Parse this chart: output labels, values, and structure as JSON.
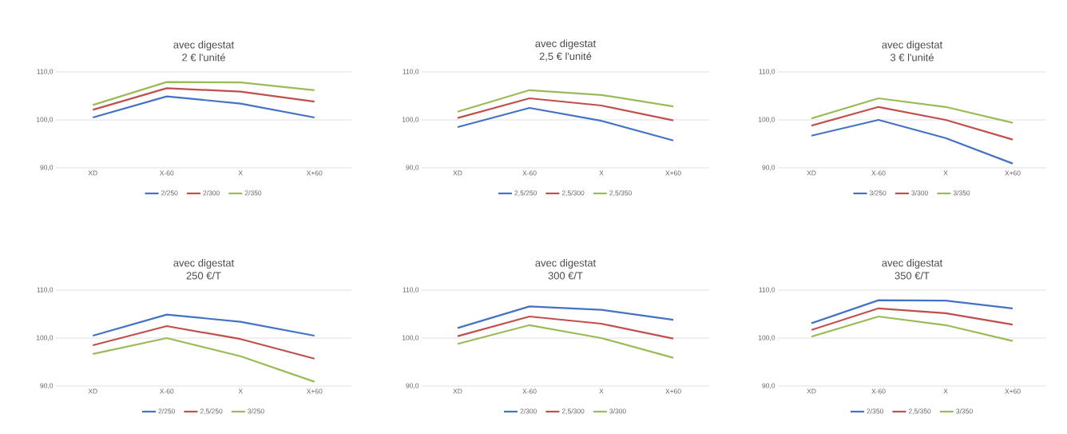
{
  "chart_data": [
    {
      "type": "line",
      "title": "avec digestat",
      "subtitle": "2 € l'unité",
      "categories": [
        "XD",
        "X-60",
        "X",
        "X+60"
      ],
      "ylim": [
        90,
        110
      ],
      "yticks": [
        {
          "value": 90,
          "label": "90,0"
        },
        {
          "value": 100,
          "label": "100,0"
        },
        {
          "value": 110,
          "label": "110,0"
        }
      ],
      "grid": "y",
      "legend": "bottom",
      "series": [
        {
          "name": "2/250",
          "color": "#4472c4",
          "values": [
            100.5,
            104.9,
            103.4,
            100.5
          ]
        },
        {
          "name": "2/300",
          "color": "#c0504d",
          "values": [
            102.1,
            106.6,
            105.9,
            103.8
          ]
        },
        {
          "name": "2/350",
          "color": "#9bbb59",
          "values": [
            103.1,
            107.9,
            107.8,
            106.2
          ]
        }
      ]
    },
    {
      "type": "line",
      "title": "avec digestat",
      "subtitle": "2,5 € l'unité",
      "categories": [
        "XD",
        "X-60",
        "X",
        "X+60"
      ],
      "ylim": [
        90,
        110
      ],
      "yticks": [
        {
          "value": 90,
          "label": "90,0"
        },
        {
          "value": 100,
          "label": "100,0"
        },
        {
          "value": 110,
          "label": "110,0"
        }
      ],
      "grid": "y",
      "legend": "bottom",
      "series": [
        {
          "name": "2,5/250",
          "color": "#4472c4",
          "values": [
            98.5,
            102.5,
            99.8,
            95.7
          ]
        },
        {
          "name": "2,5/300",
          "color": "#c0504d",
          "values": [
            100.4,
            104.5,
            103.0,
            99.9
          ]
        },
        {
          "name": "2,5/350",
          "color": "#9bbb59",
          "values": [
            101.7,
            106.2,
            105.2,
            102.8
          ]
        }
      ]
    },
    {
      "type": "line",
      "title": "avec digestat",
      "subtitle": "3 € l'unité",
      "categories": [
        "XD",
        "X-60",
        "X",
        "X+60"
      ],
      "ylim": [
        90,
        110
      ],
      "yticks": [
        {
          "value": 90,
          "label": "90,0"
        },
        {
          "value": 100,
          "label": "100,0"
        },
        {
          "value": 110,
          "label": "110,0"
        }
      ],
      "grid": "y",
      "legend": "bottom",
      "series": [
        {
          "name": "3/250",
          "color": "#4472c4",
          "values": [
            96.7,
            100.0,
            96.2,
            90.9
          ]
        },
        {
          "name": "3/300",
          "color": "#c0504d",
          "values": [
            98.8,
            102.7,
            100.0,
            95.9
          ]
        },
        {
          "name": "3/350",
          "color": "#9bbb59",
          "values": [
            100.3,
            104.5,
            102.7,
            99.4
          ]
        }
      ]
    },
    {
      "type": "line",
      "title": "avec digestat",
      "subtitle": "250 €/T",
      "categories": [
        "XD",
        "X-60",
        "X",
        "X+60"
      ],
      "ylim": [
        90,
        110
      ],
      "yticks": [
        {
          "value": 90,
          "label": "90,0"
        },
        {
          "value": 100,
          "label": "100,0"
        },
        {
          "value": 110,
          "label": "110,0"
        }
      ],
      "grid": "y",
      "legend": "bottom",
      "series": [
        {
          "name": "2/250",
          "color": "#4472c4",
          "values": [
            100.5,
            104.9,
            103.4,
            100.5
          ]
        },
        {
          "name": "2,5/250",
          "color": "#c0504d",
          "values": [
            98.5,
            102.5,
            99.8,
            95.7
          ]
        },
        {
          "name": "3/250",
          "color": "#9bbb59",
          "values": [
            96.7,
            100.0,
            96.2,
            90.9
          ]
        }
      ]
    },
    {
      "type": "line",
      "title": "avec digestat",
      "subtitle": "300 €/T",
      "categories": [
        "XD",
        "X-60",
        "X",
        "X+60"
      ],
      "ylim": [
        90,
        110
      ],
      "yticks": [
        {
          "value": 90,
          "label": "90,0"
        },
        {
          "value": 100,
          "label": "100,0"
        },
        {
          "value": 110,
          "label": "110,0"
        }
      ],
      "grid": "y",
      "legend": "bottom",
      "series": [
        {
          "name": "2/300",
          "color": "#4472c4",
          "values": [
            102.1,
            106.6,
            105.9,
            103.8
          ]
        },
        {
          "name": "2,5/300",
          "color": "#c0504d",
          "values": [
            100.4,
            104.5,
            103.0,
            99.9
          ]
        },
        {
          "name": "3/300",
          "color": "#9bbb59",
          "values": [
            98.8,
            102.7,
            100.0,
            95.9
          ]
        }
      ]
    },
    {
      "type": "line",
      "title": "avec digestat",
      "subtitle": "350 €/T",
      "categories": [
        "XD",
        "X-60",
        "X",
        "X+60"
      ],
      "ylim": [
        90,
        110
      ],
      "yticks": [
        {
          "value": 90,
          "label": "90,0"
        },
        {
          "value": 100,
          "label": "100,0"
        },
        {
          "value": 110,
          "label": "110,0"
        }
      ],
      "grid": "y",
      "legend": "bottom",
      "series": [
        {
          "name": "2/350",
          "color": "#4472c4",
          "values": [
            103.1,
            107.9,
            107.8,
            106.2
          ]
        },
        {
          "name": "2,5/350",
          "color": "#c0504d",
          "values": [
            101.7,
            106.2,
            105.2,
            102.8
          ]
        },
        {
          "name": "3/350",
          "color": "#9bbb59",
          "values": [
            100.3,
            104.5,
            102.7,
            99.4
          ]
        }
      ]
    }
  ]
}
